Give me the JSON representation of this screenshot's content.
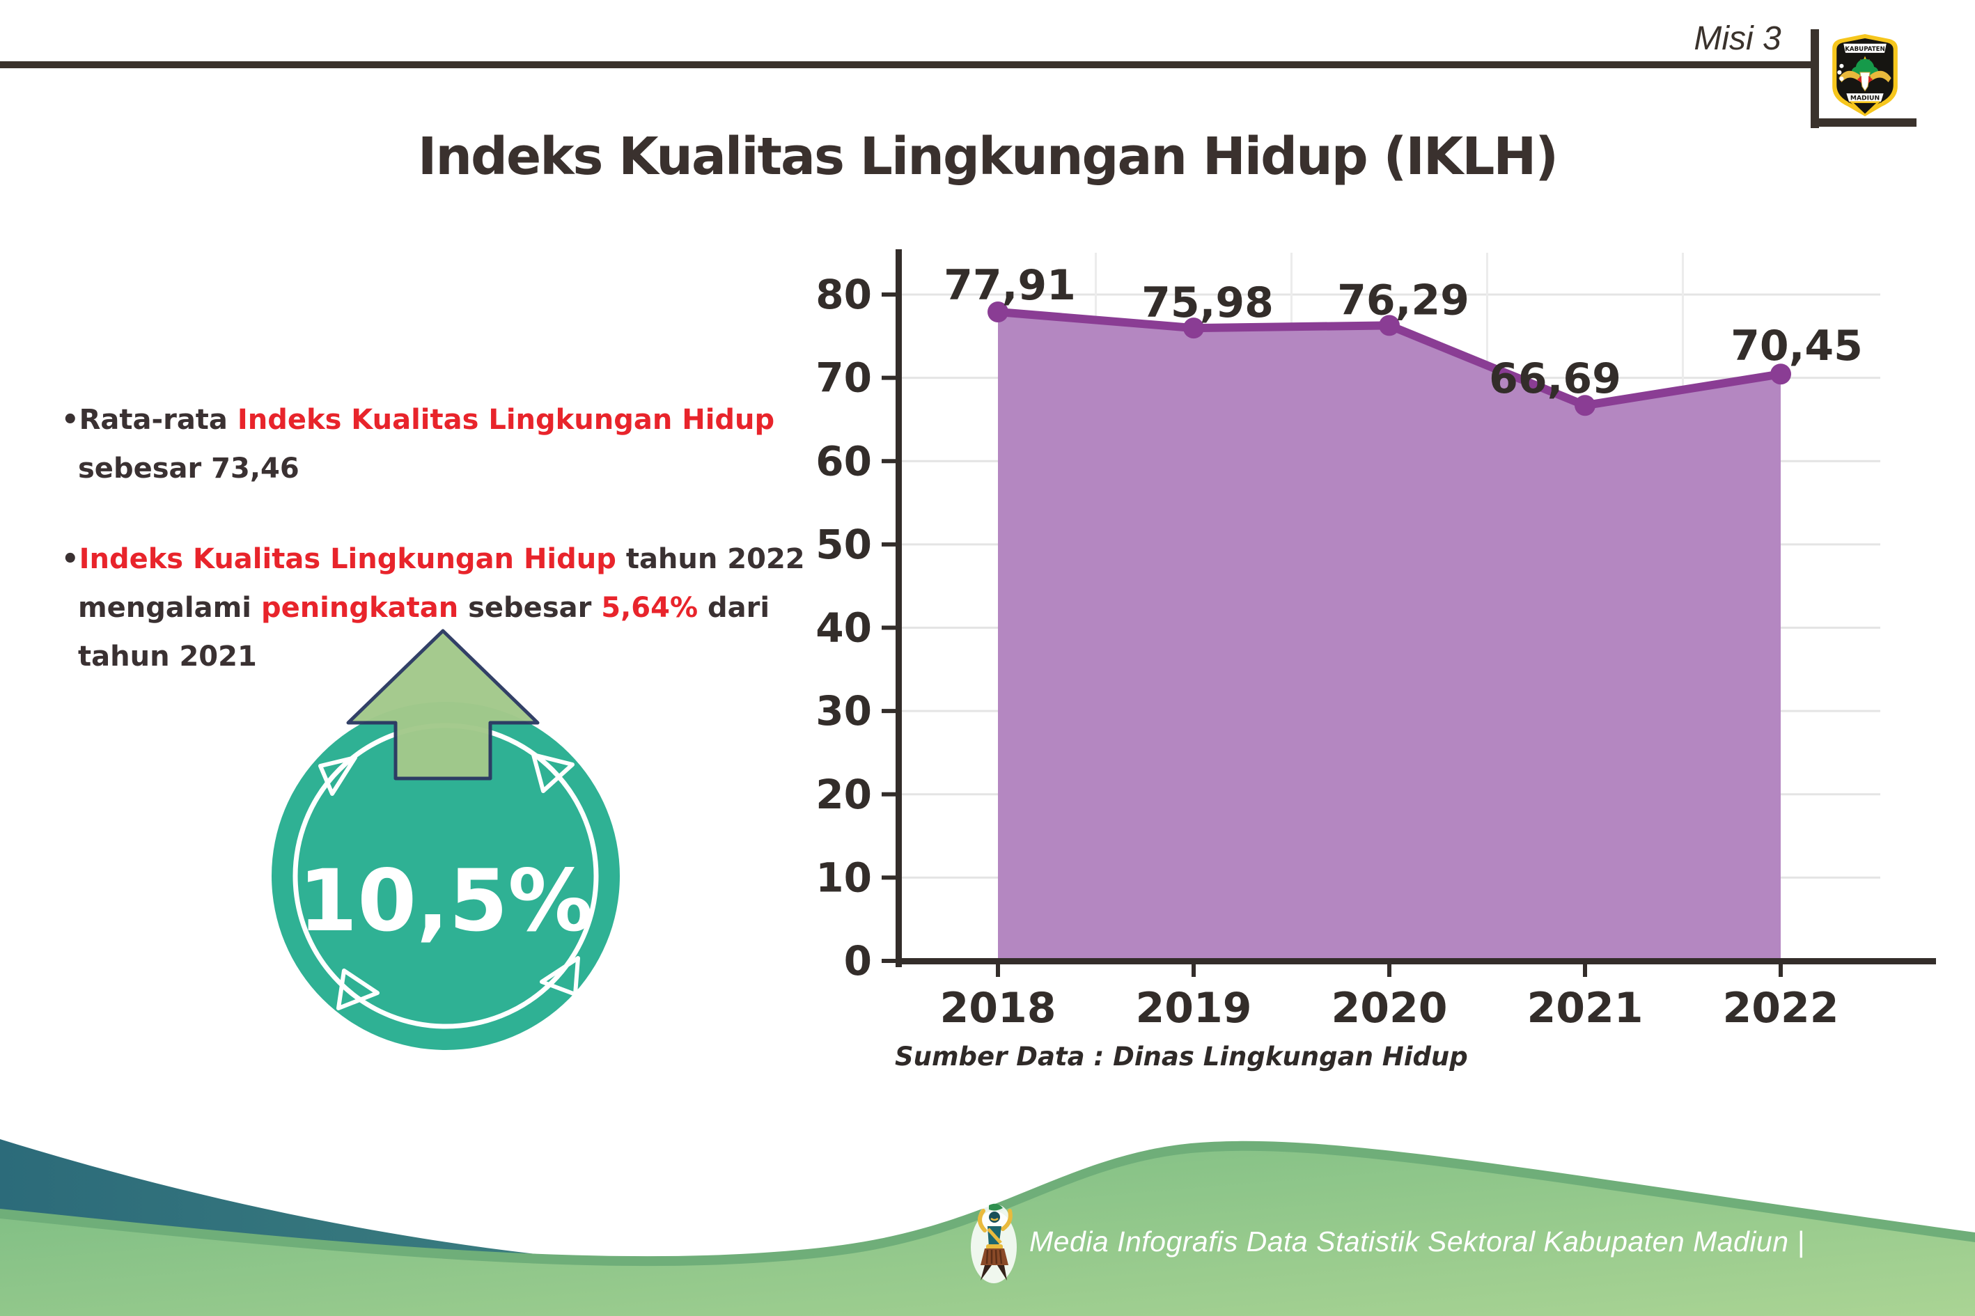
{
  "header": {
    "misi_label": "Misi 3",
    "title": "Indeks Kualitas Lingkungan Hidup (IKLH)",
    "logo_top": "KABUPATEN",
    "logo_bottom": "MADIUN"
  },
  "insights": {
    "bullet1": {
      "marker": "•",
      "l1_plain": "Rata-rata ",
      "l1_red": "Indeks Kualitas Lingkungan Hidup",
      "l2": "sebesar 73,46"
    },
    "bullet2": {
      "marker": "•",
      "l1_red": "Indeks Kualitas Lingkungan Hidup",
      "l1_tail": " tahun 2022",
      "l2_a": "mengalami ",
      "l2_red": "peningkatan",
      "l2_b": " sebesar ",
      "l2_red2": "5,64%",
      "l2_c": " dari",
      "l3": "tahun 2021"
    }
  },
  "badge": {
    "value": "10,5%",
    "circle_color": "#2fb194",
    "arrow_color": "#a3c98b",
    "arrow_outline": "#2c3a63"
  },
  "chart_data": {
    "type": "area",
    "title": "",
    "xlabel": "",
    "ylabel": "",
    "categories": [
      "2018",
      "2019",
      "2020",
      "2021",
      "2022"
    ],
    "values": [
      77.91,
      75.98,
      76.29,
      66.69,
      70.45
    ],
    "value_labels": [
      "77,91",
      "75,98",
      "76,29",
      "66,69",
      "70,45"
    ],
    "ylim": [
      0,
      80
    ],
    "ytick_step": 10,
    "yticks": [
      "0",
      "10",
      "20",
      "30",
      "40",
      "50",
      "60",
      "70",
      "80"
    ],
    "grid": "on",
    "legend": "none",
    "line_color": "#8a3d94",
    "fill_color": "#b487c1",
    "axis_color": "#332d2a",
    "grid_color": "#e4e4e4",
    "source": "Sumber Data : Dinas Lingkungan Hidup"
  },
  "footer": {
    "credit": "Media Infografis Data Statistik Sektoral Kabupaten Madiun |"
  },
  "colors": {
    "accent_red": "#e8242b",
    "text_dark": "#352e2b",
    "footer_teal": "#2c6b7a",
    "footer_teal2": "#5fa98a",
    "footer_rim": "#6fae79",
    "footer_green": "#79bb82",
    "footer_green2": "#aad494"
  }
}
